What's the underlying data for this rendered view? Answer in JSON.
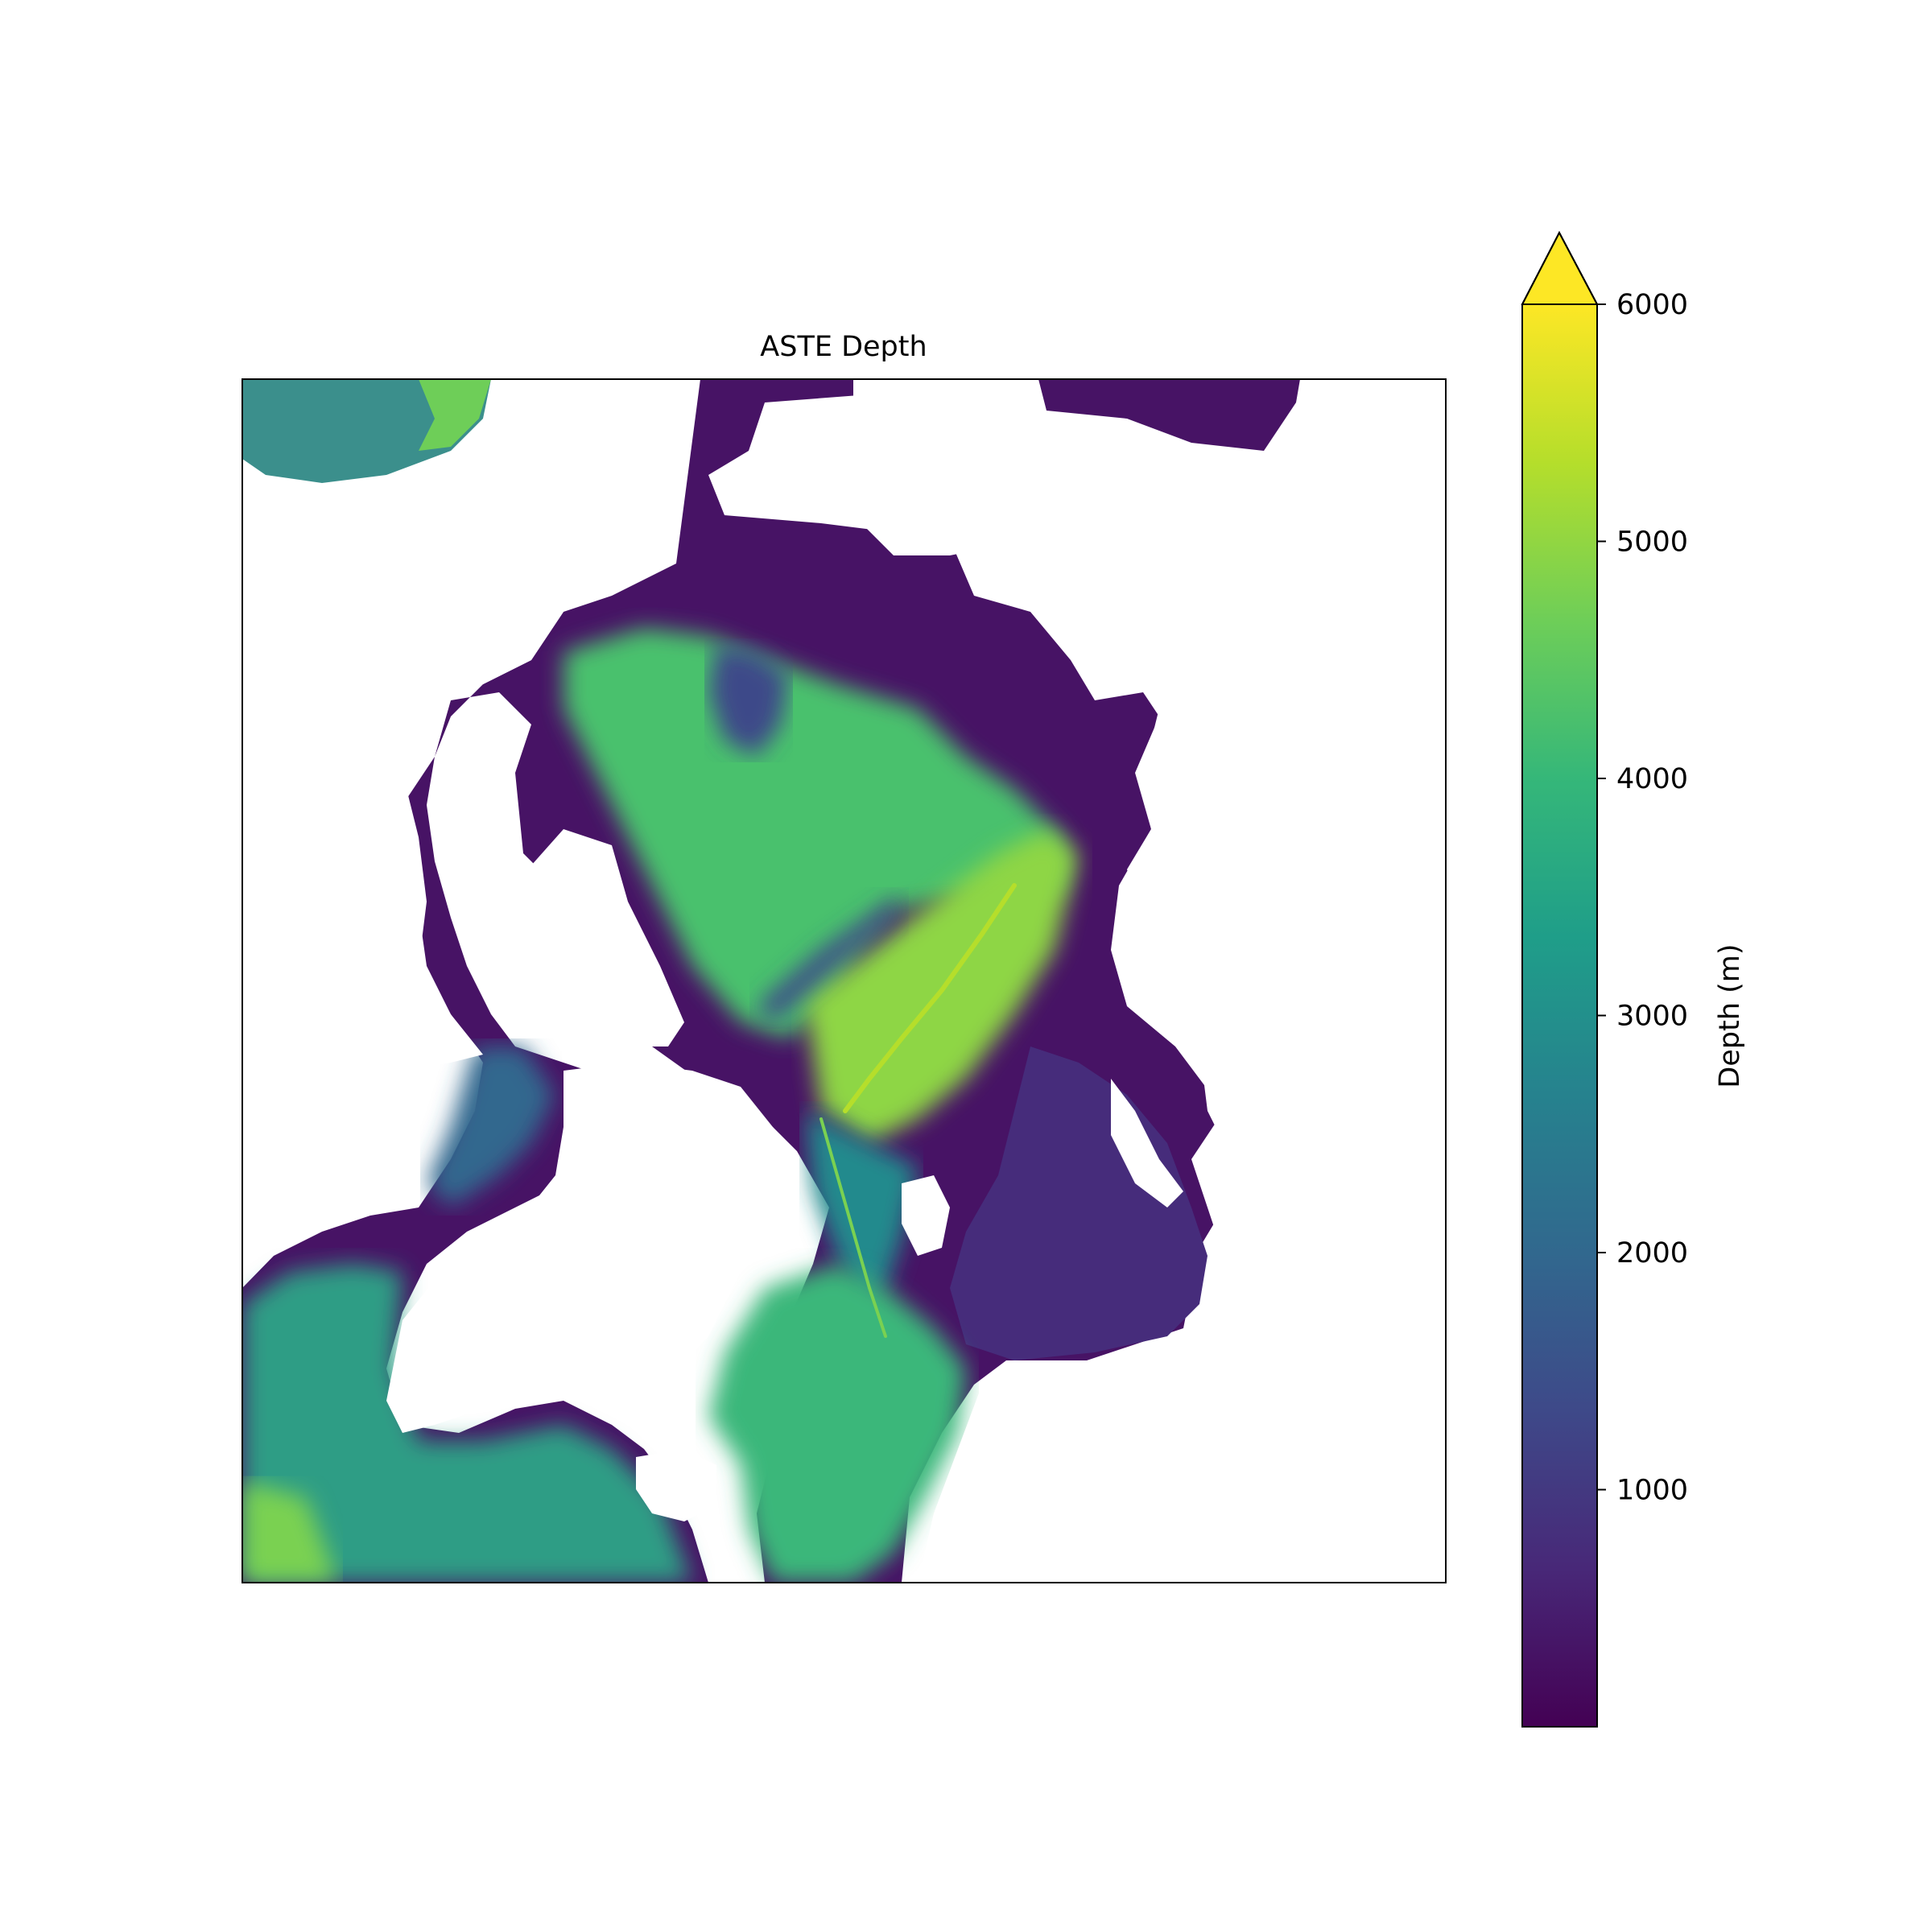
{
  "chart_data": {
    "type": "heatmap",
    "title": "ASTE Depth",
    "colorbar": {
      "label": "Depth (m)",
      "range": [
        0,
        6000
      ],
      "ticks": [
        1000,
        2000,
        3000,
        4000,
        5000,
        6000
      ],
      "extend": "max",
      "colormap": "viridis",
      "colormap_stops": [
        "#440154",
        "#482878",
        "#3e4989",
        "#31688e",
        "#26828e",
        "#1f9e89",
        "#35b779",
        "#6ece58",
        "#b5de2b",
        "#fde725"
      ]
    },
    "axes": {
      "ticks_shown": false
    },
    "map": {
      "description_values": "Bathymetry depth field; land shown as white",
      "land_color": "#ffffff",
      "regions": [
        {
          "id": "central-arctic-basin",
          "depth": 4300
        },
        {
          "id": "eurasian-basin-ridge",
          "depth": 5000
        },
        {
          "id": "lomonosov-ridge",
          "depth": 1600
        },
        {
          "id": "fram-strait-channel",
          "depth": 3000
        },
        {
          "id": "nordic-seas",
          "depth": 3700
        },
        {
          "id": "north-atlantic",
          "depth": 4200
        },
        {
          "id": "north-pacific-corner",
          "depth": 4800
        },
        {
          "id": "siberian-shelf",
          "depth": 100
        },
        {
          "id": "barents-kara-shelf",
          "depth": 300
        },
        {
          "id": "canadian-archipelago",
          "depth": 300
        },
        {
          "id": "baffin-bay",
          "depth": 2000
        },
        {
          "id": "labrador-shelf",
          "depth": 600
        }
      ]
    }
  }
}
